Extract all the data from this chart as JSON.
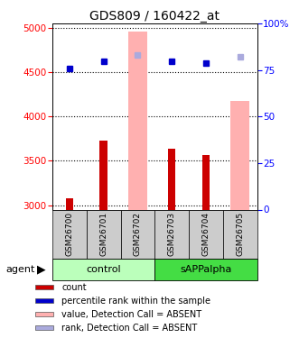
{
  "title": "GDS809 / 160422_at",
  "samples": [
    "GSM26700",
    "GSM26701",
    "GSM26702",
    "GSM26703",
    "GSM26704",
    "GSM26705"
  ],
  "count_values": [
    3080,
    3730,
    null,
    3640,
    3570,
    null
  ],
  "rank_values": [
    76,
    80,
    null,
    80,
    79,
    null
  ],
  "absent_value_values": [
    null,
    null,
    4960,
    null,
    null,
    4180
  ],
  "absent_rank_values": [
    null,
    null,
    83,
    null,
    null,
    82
  ],
  "ylim_left": [
    2950,
    5050
  ],
  "ylim_right": [
    0,
    100
  ],
  "yticks_left": [
    3000,
    3500,
    4000,
    4500,
    5000
  ],
  "yticks_right": [
    0,
    25,
    50,
    75,
    100
  ],
  "color_count": "#cc0000",
  "color_rank": "#0000cc",
  "color_absent_value": "#ffb0b0",
  "color_absent_rank": "#aaaadd",
  "control_bg": "#bbffbb",
  "sapp_bg": "#44dd44",
  "sample_bg": "#cccccc",
  "legend_labels": [
    "count",
    "percentile rank within the sample",
    "value, Detection Call = ABSENT",
    "rank, Detection Call = ABSENT"
  ]
}
